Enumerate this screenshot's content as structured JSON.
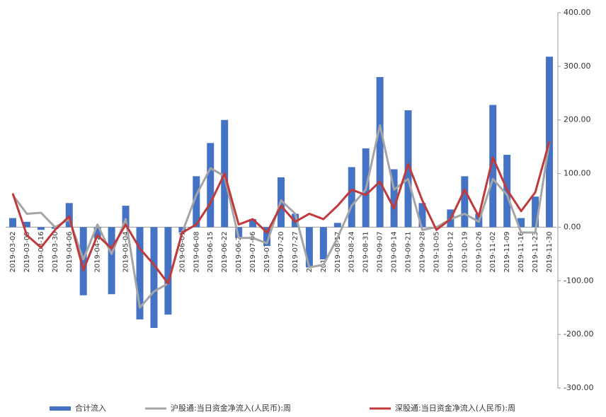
{
  "chart_data": {
    "type": "bar-line",
    "categories": [
      "2019-03-02",
      "2019-03-09",
      "2019-03-16",
      "2019-03-30",
      "2019-04-06",
      "2019-04-13",
      "2019-04-20",
      "2019-04-27",
      "2019-05-04",
      "2019-05-11",
      "2019-05-18",
      "2019-05-25",
      "2019-06-01",
      "2019-06-08",
      "2019-06-15",
      "2019-06-22",
      "2019-06-29",
      "2019-07-06",
      "2019-07-13",
      "2019-07-20",
      "2019-07-27",
      "2019-08-03",
      "2019-08-10",
      "2019-08-17",
      "2019-08-24",
      "2019-08-31",
      "2019-09-07",
      "2019-09-14",
      "2019-09-21",
      "2019-09-28",
      "2019-10-05",
      "2019-10-12",
      "2019-10-19",
      "2019-10-26",
      "2019-11-02",
      "2019-11-09",
      "2019-11-16",
      "2019-11-23",
      "2019-11-30"
    ],
    "series": [
      {
        "name": "合计流入",
        "color": "#4472c4",
        "kind": "bar",
        "values": [
          17,
          10,
          -5,
          -3,
          45,
          -127,
          -20,
          -125,
          40,
          -172,
          -188,
          -163,
          -10,
          95,
          157,
          200,
          -20,
          15,
          -35,
          93,
          25,
          -75,
          -60,
          8,
          112,
          147,
          280,
          108,
          218,
          45,
          0,
          33,
          95,
          25,
          228,
          135,
          17,
          57,
          318
        ]
      },
      {
        "name": "沪股通:当日资金净流入(人民币):周",
        "color": "#a5a5a5",
        "kind": "line",
        "values": [
          60,
          25,
          27,
          0,
          15,
          -60,
          5,
          -50,
          15,
          -150,
          -120,
          -105,
          -10,
          60,
          110,
          95,
          -20,
          -20,
          -30,
          50,
          25,
          -75,
          -70,
          -20,
          40,
          70,
          190,
          70,
          90,
          -5,
          0,
          15,
          25,
          10,
          90,
          60,
          -10,
          -10,
          160
        ]
      },
      {
        "name": "深股通:当日资金净流入(人民币):周",
        "color": "#c0393b",
        "kind": "line",
        "values": [
          63,
          -15,
          -38,
          -5,
          20,
          -80,
          -15,
          -40,
          5,
          -40,
          -70,
          -105,
          -10,
          5,
          45,
          100,
          5,
          15,
          -10,
          40,
          10,
          25,
          15,
          40,
          70,
          60,
          85,
          35,
          118,
          50,
          -5,
          15,
          70,
          20,
          130,
          70,
          30,
          65,
          160
        ]
      }
    ],
    "ylim": [
      -300,
      400
    ],
    "yticks": [
      {
        "value": -300,
        "label": "-300.00"
      },
      {
        "value": -200,
        "label": "-200.00"
      },
      {
        "value": -100,
        "label": "-100.00"
      },
      {
        "value": 0,
        "label": "0.00"
      },
      {
        "value": 100,
        "label": "100.00"
      },
      {
        "value": 200,
        "label": "200.00"
      },
      {
        "value": 300,
        "label": "300.00"
      },
      {
        "value": 400,
        "label": "400.00"
      }
    ]
  }
}
